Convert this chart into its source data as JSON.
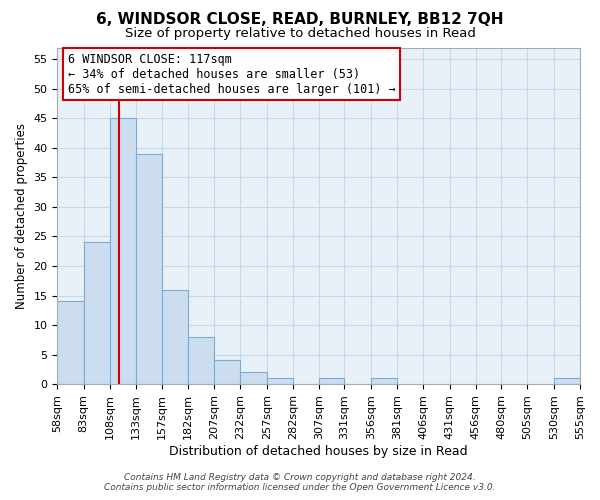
{
  "title": "6, WINDSOR CLOSE, READ, BURNLEY, BB12 7QH",
  "subtitle": "Size of property relative to detached houses in Read",
  "xlabel": "Distribution of detached houses by size in Read",
  "ylabel": "Number of detached properties",
  "bar_left_edges": [
    58,
    83,
    108,
    133,
    157,
    182,
    207,
    232,
    257,
    282,
    307,
    331,
    356,
    381,
    406,
    431,
    456,
    480,
    505,
    530
  ],
  "bar_widths": [
    25,
    25,
    25,
    24,
    25,
    25,
    25,
    25,
    25,
    25,
    24,
    25,
    25,
    25,
    25,
    25,
    24,
    25,
    25,
    25
  ],
  "bar_heights": [
    14,
    24,
    45,
    39,
    16,
    8,
    4,
    2,
    1,
    0,
    1,
    0,
    1,
    0,
    0,
    0,
    0,
    0,
    0,
    1
  ],
  "bar_color": "#ccddf0",
  "bar_edge_color": "#7aadd4",
  "red_line_x": 117,
  "red_line_color": "#cc0000",
  "yticks": [
    0,
    5,
    10,
    15,
    20,
    25,
    30,
    35,
    40,
    45,
    50,
    55
  ],
  "ylim": [
    0,
    57
  ],
  "xlim_left": 58,
  "xlim_right": 555,
  "xtick_labels": [
    "58sqm",
    "83sqm",
    "108sqm",
    "133sqm",
    "157sqm",
    "182sqm",
    "207sqm",
    "232sqm",
    "257sqm",
    "282sqm",
    "307sqm",
    "331sqm",
    "356sqm",
    "381sqm",
    "406sqm",
    "431sqm",
    "456sqm",
    "480sqm",
    "505sqm",
    "530sqm",
    "555sqm"
  ],
  "xtick_positions": [
    58,
    83,
    108,
    133,
    157,
    182,
    207,
    232,
    257,
    282,
    307,
    331,
    356,
    381,
    406,
    431,
    456,
    480,
    505,
    530,
    555
  ],
  "annotation_line1": "6 WINDSOR CLOSE: 117sqm",
  "annotation_line2": "← 34% of detached houses are smaller (53)",
  "annotation_line3": "65% of semi-detached houses are larger (101) →",
  "footer_line1": "Contains HM Land Registry data © Crown copyright and database right 2024.",
  "footer_line2": "Contains public sector information licensed under the Open Government Licence v3.0.",
  "title_fontsize": 11,
  "subtitle_fontsize": 9.5,
  "xlabel_fontsize": 9,
  "ylabel_fontsize": 8.5,
  "tick_fontsize": 8,
  "annotation_fontsize": 8.5,
  "footer_fontsize": 6.5,
  "grid_color": "#c8d8e8",
  "background_color": "#e8f0f8"
}
